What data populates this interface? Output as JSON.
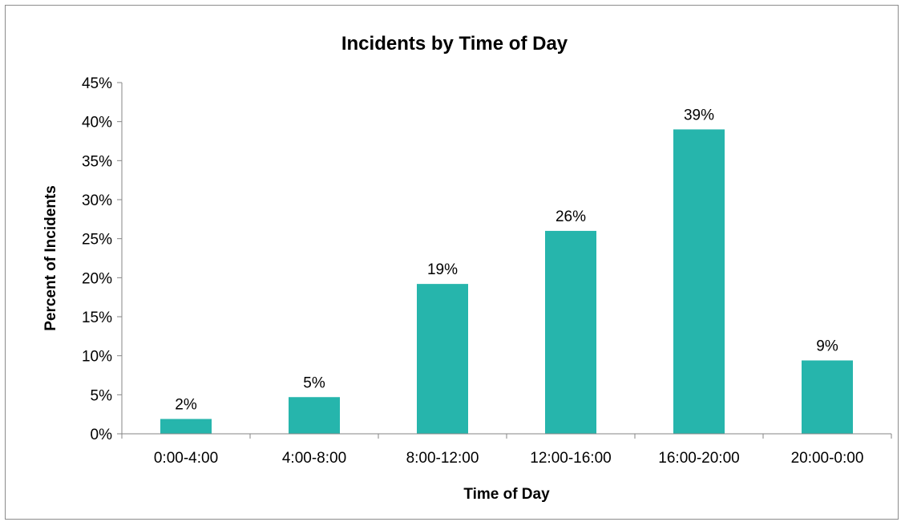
{
  "chart_data": {
    "type": "bar",
    "title": "Incidents by Time of Day",
    "xlabel": "Time of Day",
    "ylabel": "Percent of Incidents",
    "categories": [
      "0:00-4:00",
      "4:00-8:00",
      "8:00-12:00",
      "12:00-16:00",
      "16:00-20:00",
      "20:00-0:00"
    ],
    "values": [
      1.9,
      4.7,
      19.2,
      26.0,
      39.0,
      9.4
    ],
    "data_labels": [
      "2%",
      "5%",
      "19%",
      "26%",
      "39%",
      "9%"
    ],
    "ylim": [
      0,
      45
    ],
    "yticks": [
      0,
      5,
      10,
      15,
      20,
      25,
      30,
      35,
      40,
      45
    ],
    "ytick_labels": [
      "0%",
      "5%",
      "10%",
      "15%",
      "20%",
      "25%",
      "30%",
      "35%",
      "40%",
      "45%"
    ],
    "grid": false,
    "legend": "none",
    "bar_color": "#26b5ac"
  }
}
